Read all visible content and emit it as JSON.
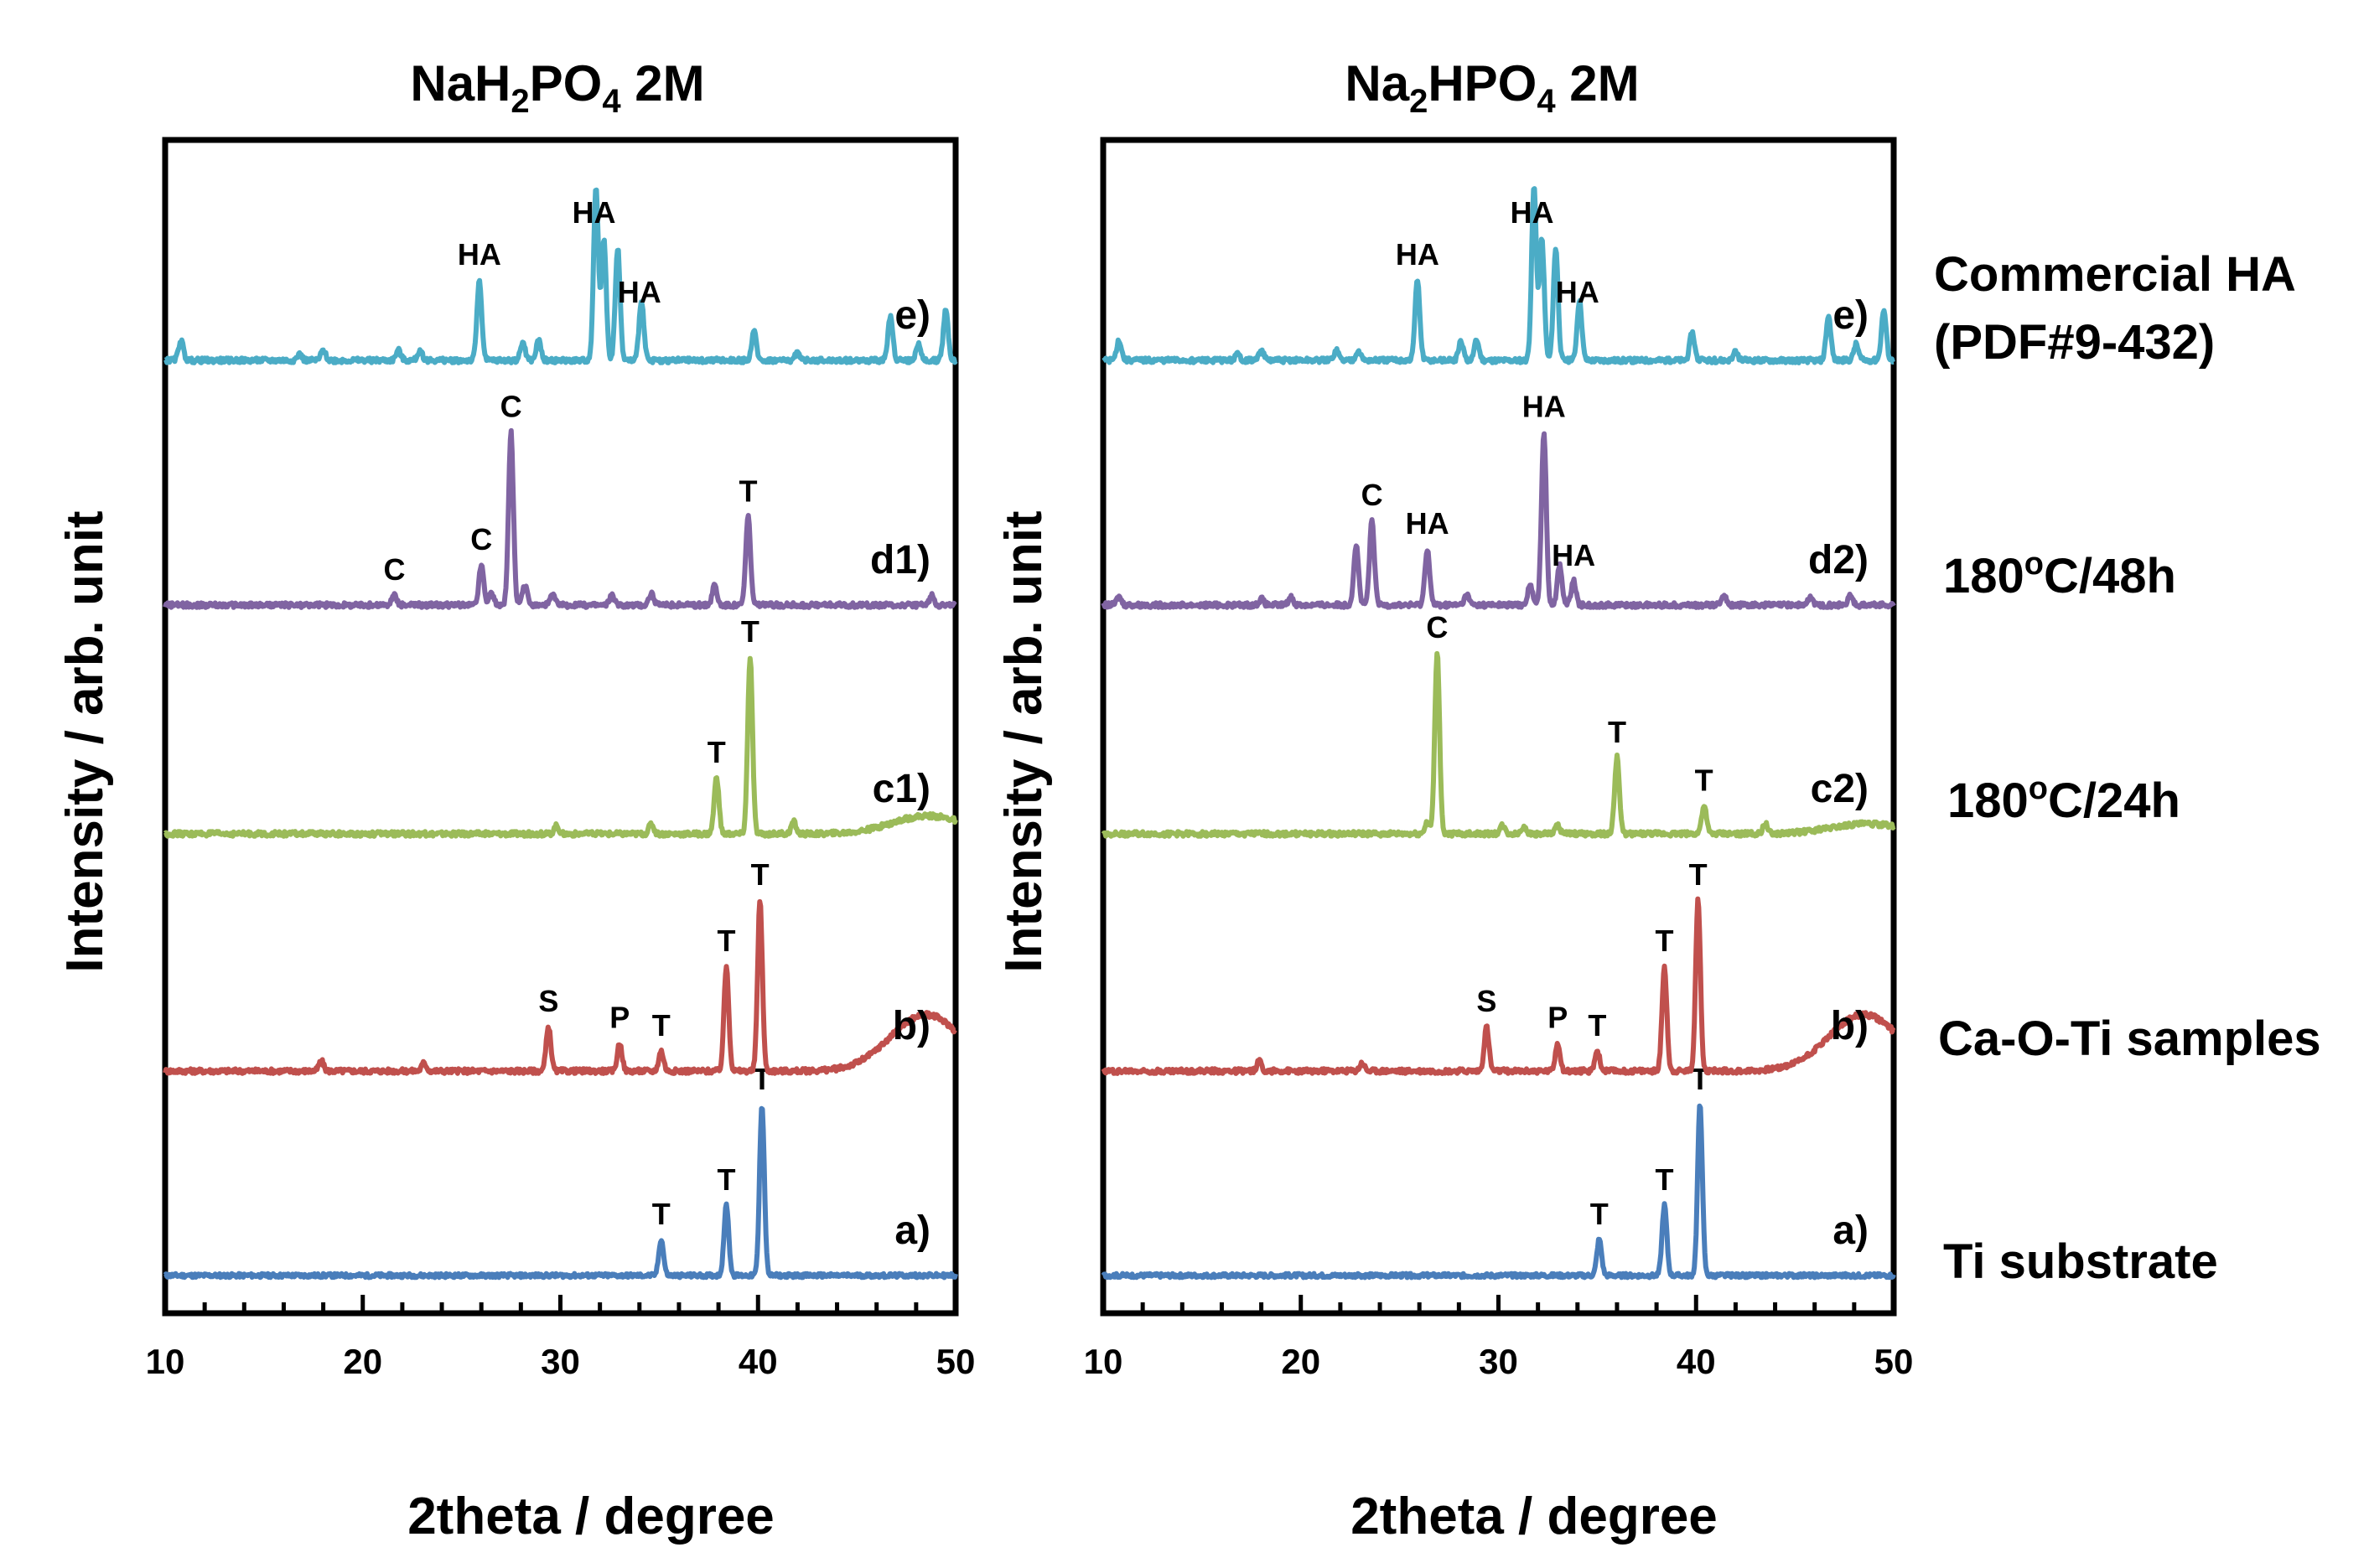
{
  "chart_data": [
    {
      "type": "line",
      "title_base": "NaH",
      "title_sub1": "2",
      "title_mid": "PO",
      "title_sub2": "4",
      "title_tail": " 2M",
      "xlabel": "2theta / degree",
      "ylabel": "Intensity / arb. unit",
      "xlim": [
        10,
        50
      ],
      "xticks": [
        "10",
        "20",
        "30",
        "40",
        "50"
      ],
      "series": [
        {
          "name": "a)",
          "label": "a)",
          "color": "#4a7ebb",
          "offset": 0,
          "peaks": [
            [
              35.1,
              0.18
            ],
            [
              38.4,
              0.35
            ],
            [
              40.2,
              0.85
            ]
          ],
          "noise": 0.01,
          "annotations": [
            {
              "text": "T",
              "x": 35.1
            },
            {
              "text": "T",
              "x": 38.4
            },
            {
              "text": "T",
              "x": 40.2
            }
          ]
        },
        {
          "name": "b)",
          "label": "b)",
          "color": "#c0504d",
          "offset": 1,
          "peaks": [
            [
              17.9,
              0.05
            ],
            [
              23.1,
              0.04
            ],
            [
              29.4,
              0.22
            ],
            [
              33.0,
              0.14
            ],
            [
              35.1,
              0.1
            ],
            [
              38.4,
              0.52
            ],
            [
              40.1,
              0.85
            ]
          ],
          "hump": [
            48.5,
            1.8,
            0.28
          ],
          "noise": 0.012,
          "annotations": [
            {
              "text": "S",
              "x": 29.4
            },
            {
              "text": "P",
              "x": 33.0
            },
            {
              "text": "T",
              "x": 35.1
            },
            {
              "text": "T",
              "x": 38.4
            },
            {
              "text": "T",
              "x": 40.1
            }
          ]
        },
        {
          "name": "c1)",
          "label": "c1)",
          "color": "#9bbb59",
          "offset": 2,
          "peaks": [
            [
              29.8,
              0.04
            ],
            [
              34.6,
              0.05
            ],
            [
              37.9,
              0.28
            ],
            [
              39.6,
              0.88
            ],
            [
              41.8,
              0.06
            ]
          ],
          "hump": [
            48.6,
            1.8,
            0.09
          ],
          "noise": 0.012,
          "annotations": [
            {
              "text": "T",
              "x": 37.9
            },
            {
              "text": "T",
              "x": 39.6
            }
          ]
        },
        {
          "name": "d1)",
          "label": "d1)",
          "color": "#8064a2",
          "offset": 3,
          "peaks": [
            [
              21.6,
              0.05
            ],
            [
              26.0,
              0.2
            ],
            [
              26.5,
              0.06
            ],
            [
              27.5,
              0.86
            ],
            [
              28.2,
              0.1
            ],
            [
              29.6,
              0.05
            ],
            [
              32.6,
              0.05
            ],
            [
              34.6,
              0.06
            ],
            [
              37.8,
              0.1
            ],
            [
              39.5,
              0.44
            ],
            [
              48.8,
              0.05
            ]
          ],
          "noise": 0.012,
          "annotations": [
            {
              "text": "C",
              "x": 21.6
            },
            {
              "text": "C",
              "x": 26.0
            },
            {
              "text": "C",
              "x": 27.5
            },
            {
              "text": "T",
              "x": 39.5
            }
          ]
        },
        {
          "name": "e)",
          "label": "e)",
          "color": "#4bacc6",
          "offset": 4,
          "peaks": [
            [
              10.8,
              0.1
            ],
            [
              16.8,
              0.03
            ],
            [
              18.0,
              0.05
            ],
            [
              21.8,
              0.05
            ],
            [
              22.9,
              0.05
            ],
            [
              25.9,
              0.4
            ],
            [
              28.1,
              0.09
            ],
            [
              28.9,
              0.1
            ],
            [
              31.8,
              0.86
            ],
            [
              32.2,
              0.6
            ],
            [
              32.9,
              0.56
            ],
            [
              34.1,
              0.3
            ],
            [
              39.8,
              0.14
            ],
            [
              42.0,
              0.04
            ],
            [
              46.7,
              0.22
            ],
            [
              48.1,
              0.08
            ],
            [
              49.5,
              0.25
            ]
          ],
          "noise": 0.012,
          "annotations": [
            {
              "text": "HA",
              "x": 25.9
            },
            {
              "text": "HA",
              "x": 31.7
            },
            {
              "text": "HA",
              "x": 34.0
            }
          ]
        }
      ]
    },
    {
      "type": "line",
      "title_base": "Na",
      "title_sub1": "2",
      "title_mid": "HPO",
      "title_sub2": "4",
      "title_tail": " 2M",
      "xlabel": "2theta / degree",
      "ylabel": "Intensity / arb. unit",
      "xlim": [
        10,
        50
      ],
      "xticks": [
        "10",
        "20",
        "30",
        "40",
        "50"
      ],
      "series": [
        {
          "name": "a)",
          "label": "a)",
          "color": "#4a7ebb",
          "offset": 0,
          "peaks": [
            [
              35.1,
              0.18
            ],
            [
              38.4,
              0.35
            ],
            [
              40.2,
              0.85
            ]
          ],
          "noise": 0.01,
          "annotations": [
            {
              "text": "T",
              "x": 35.1
            },
            {
              "text": "T",
              "x": 38.4
            },
            {
              "text": "T",
              "x": 40.2
            }
          ]
        },
        {
          "name": "b)",
          "label": "b)",
          "color": "#c0504d",
          "offset": 1,
          "peaks": [
            [
              17.9,
              0.05
            ],
            [
              23.1,
              0.04
            ],
            [
              29.4,
              0.22
            ],
            [
              33.0,
              0.14
            ],
            [
              35.0,
              0.1
            ],
            [
              38.4,
              0.52
            ],
            [
              40.1,
              0.85
            ]
          ],
          "hump": [
            48.5,
            1.8,
            0.28
          ],
          "noise": 0.012,
          "annotations": [
            {
              "text": "S",
              "x": 29.4
            },
            {
              "text": "P",
              "x": 33.0
            },
            {
              "text": "T",
              "x": 35.0
            },
            {
              "text": "T",
              "x": 38.4
            },
            {
              "text": "T",
              "x": 40.1
            }
          ]
        },
        {
          "name": "c2)",
          "label": "c2)",
          "color": "#9bbb59",
          "offset": 2,
          "peaks": [
            [
              26.4,
              0.06
            ],
            [
              26.9,
              0.9
            ],
            [
              30.2,
              0.04
            ],
            [
              31.3,
              0.04
            ],
            [
              33.0,
              0.04
            ],
            [
              36.0,
              0.38
            ],
            [
              40.4,
              0.14
            ],
            [
              43.5,
              0.05
            ]
          ],
          "hump": [
            48.6,
            1.8,
            0.05
          ],
          "noise": 0.012,
          "annotations": [
            {
              "text": "C",
              "x": 26.9
            },
            {
              "text": "T",
              "x": 36.0
            },
            {
              "text": "T",
              "x": 40.4
            }
          ]
        },
        {
          "name": "d2)",
          "label": "d2)",
          "color": "#8064a2",
          "offset": 3,
          "peaks": [
            [
              10.8,
              0.04
            ],
            [
              18.0,
              0.03
            ],
            [
              19.5,
              0.04
            ],
            [
              22.8,
              0.3
            ],
            [
              23.6,
              0.42
            ],
            [
              26.4,
              0.28
            ],
            [
              28.4,
              0.05
            ],
            [
              31.6,
              0.1
            ],
            [
              32.3,
              0.86
            ],
            [
              33.1,
              0.2
            ],
            [
              33.8,
              0.12
            ],
            [
              41.4,
              0.05
            ],
            [
              45.8,
              0.04
            ],
            [
              47.8,
              0.05
            ]
          ],
          "noise": 0.012,
          "annotations": [
            {
              "text": "C",
              "x": 23.6
            },
            {
              "text": "HA",
              "x": 26.4
            },
            {
              "text": "HA",
              "x": 32.3
            },
            {
              "text": "HA",
              "x": 33.8
            }
          ]
        },
        {
          "name": "e)",
          "label": "e)",
          "color": "#4bacc6",
          "offset": 4,
          "peaks": [
            [
              10.8,
              0.1
            ],
            [
              16.8,
              0.03
            ],
            [
              18.0,
              0.05
            ],
            [
              21.8,
              0.05
            ],
            [
              22.9,
              0.05
            ],
            [
              25.9,
              0.4
            ],
            [
              28.1,
              0.09
            ],
            [
              28.9,
              0.1
            ],
            [
              31.8,
              0.86
            ],
            [
              32.2,
              0.6
            ],
            [
              32.9,
              0.56
            ],
            [
              34.1,
              0.3
            ],
            [
              39.8,
              0.14
            ],
            [
              42.0,
              0.04
            ],
            [
              46.7,
              0.22
            ],
            [
              48.1,
              0.08
            ],
            [
              49.5,
              0.25
            ]
          ],
          "noise": 0.012,
          "annotations": [
            {
              "text": "HA",
              "x": 25.9
            },
            {
              "text": "HA",
              "x": 31.7
            },
            {
              "text": "HA",
              "x": 34.0
            }
          ]
        }
      ]
    }
  ],
  "sample_descriptions": [
    {
      "line1": "Commercial HA",
      "line2": "(PDF#9-432)"
    },
    {
      "pre": "180",
      "sup": "o",
      "post": "C/48h"
    },
    {
      "pre": "180",
      "sup": "o",
      "post": "C/24h"
    },
    {
      "text": "Ca-O-Ti samples"
    },
    {
      "text": "Ti substrate"
    }
  ]
}
